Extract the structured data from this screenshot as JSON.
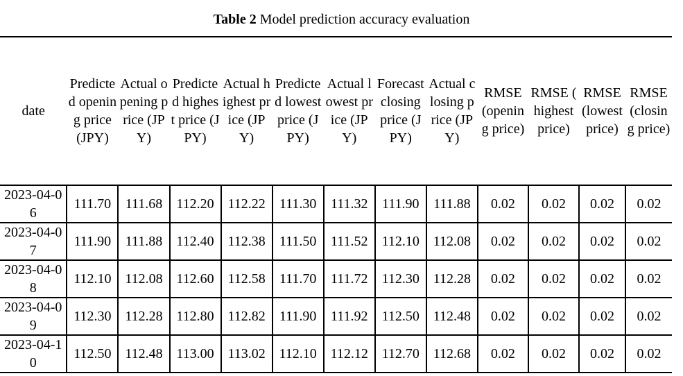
{
  "caption": {
    "label": "Table 2",
    "text": "Model prediction accuracy evaluation"
  },
  "headers": [
    "date",
    "Predicted opening price (JPY)",
    "Actual opening price (JPY)",
    "Predicted highest price (JPY)",
    "Actual highest price (JPY)",
    "Predicted lowest price (JPY)",
    "Actual lowest price (JPY)",
    "Forecast closing price (JPY)",
    "Actual closing price (JPY)",
    "RMSE (opening price)",
    "RMSE ( highest price)",
    "RMSE (lowest price)",
    "RMSE (closing price)"
  ],
  "rows": [
    [
      "2023-04-06",
      "111.70",
      "111.68",
      "112.20",
      "112.22",
      "111.30",
      "111.32",
      "111.90",
      "111.88",
      "0.02",
      "0.02",
      "0.02",
      "0.02"
    ],
    [
      "2023-04-07",
      "111.90",
      "111.88",
      "112.40",
      "112.38",
      "111.50",
      "111.52",
      "112.10",
      "112.08",
      "0.02",
      "0.02",
      "0.02",
      "0.02"
    ],
    [
      "2023-04-08",
      "112.10",
      "112.08",
      "112.60",
      "112.58",
      "111.70",
      "111.72",
      "112.30",
      "112.28",
      "0.02",
      "0.02",
      "0.02",
      "0.02"
    ],
    [
      "2023-04-09",
      "112.30",
      "112.28",
      "112.80",
      "112.82",
      "111.90",
      "111.92",
      "112.50",
      "112.48",
      "0.02",
      "0.02",
      "0.02",
      "0.02"
    ],
    [
      "2023-04-10",
      "112.50",
      "112.48",
      "113.00",
      "113.02",
      "112.10",
      "112.12",
      "112.70",
      "112.68",
      "0.02",
      "0.02",
      "0.02",
      "0.02"
    ]
  ]
}
